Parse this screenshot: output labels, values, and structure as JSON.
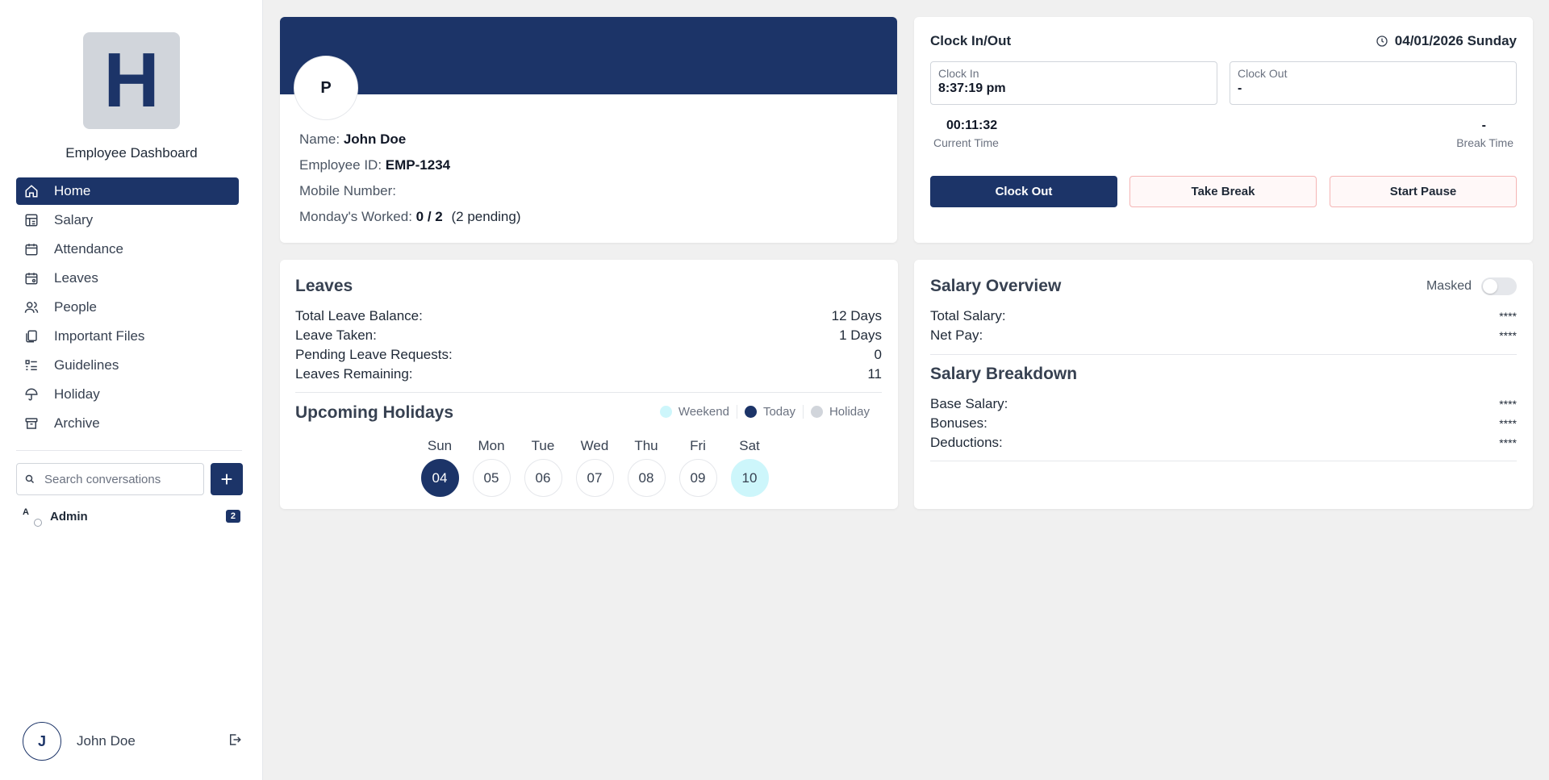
{
  "sidebar": {
    "logo_letter": "H",
    "app_title": "Employee Dashboard",
    "nav": [
      {
        "label": "Home",
        "icon": "home-icon"
      },
      {
        "label": "Salary",
        "icon": "salary-icon"
      },
      {
        "label": "Attendance",
        "icon": "calendar-icon"
      },
      {
        "label": "Leaves",
        "icon": "calendar-user-icon"
      },
      {
        "label": "People",
        "icon": "people-icon"
      },
      {
        "label": "Important Files",
        "icon": "files-icon"
      },
      {
        "label": "Guidelines",
        "icon": "list-icon"
      },
      {
        "label": "Holiday",
        "icon": "umbrella-icon"
      },
      {
        "label": "Archive",
        "icon": "archive-icon"
      }
    ],
    "search_placeholder": "Search conversations",
    "add_label": "+",
    "chat": {
      "initial": "A",
      "name": "Admin",
      "badge": "2"
    },
    "user": {
      "initial": "J",
      "name": "John Doe"
    }
  },
  "profile": {
    "avatar_initial": "P",
    "name_label": "Name:",
    "name": "John Doe",
    "id_label": "Employee ID:",
    "id": "EMP-1234",
    "mobile_label": "Mobile Number:",
    "mondays_label": "Monday's Worked:",
    "mondays_value": "0 / 2",
    "mondays_pending": "(2 pending)"
  },
  "clock": {
    "title": "Clock In/Out",
    "date": "04/01/2026 Sunday",
    "clock_in_label": "Clock In",
    "clock_in_value": "8:37:19 pm",
    "clock_out_label": "Clock Out",
    "clock_out_value": "-",
    "current_time_value": "00:11:32",
    "current_time_label": "Current Time",
    "break_time_value": "-",
    "break_time_label": "Break Time",
    "btn_clock_out": "Clock Out",
    "btn_take_break": "Take Break",
    "btn_start_pause": "Start Pause"
  },
  "leaves": {
    "title": "Leaves",
    "rows": [
      {
        "label": "Total Leave Balance:",
        "value": "12 Days"
      },
      {
        "label": "Leave Taken:",
        "value": "1 Days"
      },
      {
        "label": "Pending Leave Requests:",
        "value": "0"
      },
      {
        "label": "Leaves Remaining:",
        "value": "11"
      }
    ],
    "holidays_title": "Upcoming Holidays",
    "legend": [
      {
        "label": "Weekend",
        "color": "#cdf6fb"
      },
      {
        "label": "Today",
        "color": "#1c3468"
      },
      {
        "label": "Holiday",
        "color": "#d1d5db"
      }
    ],
    "days": [
      {
        "name": "Sun",
        "date": "04",
        "state": "today"
      },
      {
        "name": "Mon",
        "date": "05",
        "state": ""
      },
      {
        "name": "Tue",
        "date": "06",
        "state": ""
      },
      {
        "name": "Wed",
        "date": "07",
        "state": ""
      },
      {
        "name": "Thu",
        "date": "08",
        "state": ""
      },
      {
        "name": "Fri",
        "date": "09",
        "state": ""
      },
      {
        "name": "Sat",
        "date": "10",
        "state": "weekend"
      }
    ]
  },
  "salary": {
    "title": "Salary Overview",
    "masked_label": "Masked",
    "overview": [
      {
        "label": "Total Salary:",
        "value": "****"
      },
      {
        "label": "Net Pay:",
        "value": "****"
      }
    ],
    "breakdown_title": "Salary Breakdown",
    "breakdown": [
      {
        "label": "Base Salary:",
        "value": "****"
      },
      {
        "label": "Bonuses:",
        "value": "****"
      },
      {
        "label": "Deductions:",
        "value": "****"
      }
    ]
  }
}
